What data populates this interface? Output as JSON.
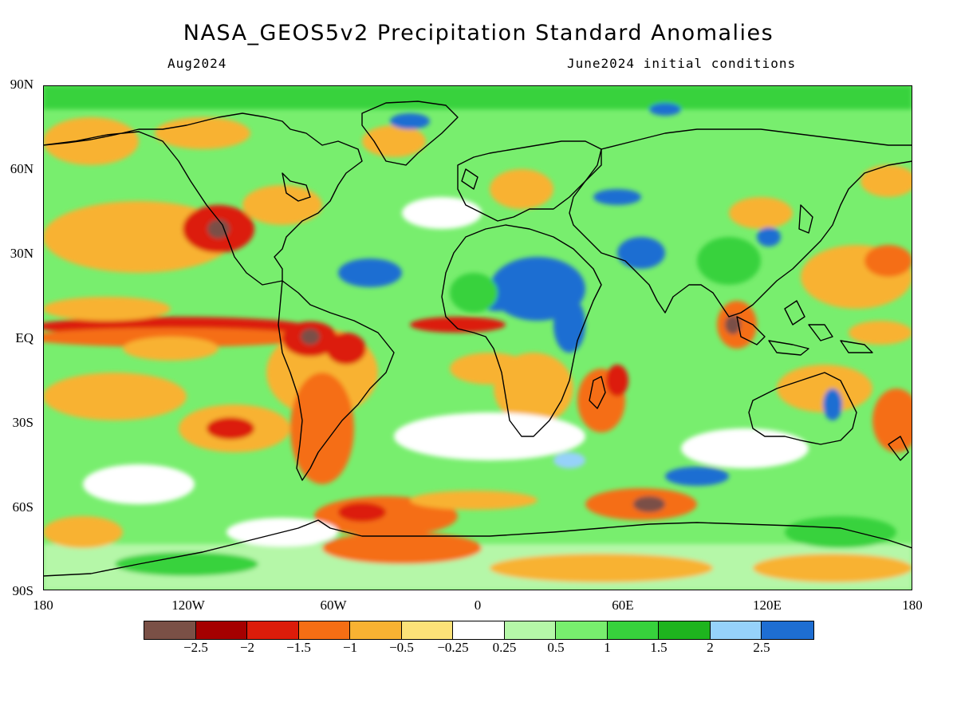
{
  "title": "NASA_GEOS5v2 Precipitation Standard Anomalies",
  "subtitle_left": "Aug2024",
  "subtitle_right": "June2024 initial conditions",
  "lat_labels": [
    "90N",
    "60N",
    "30N",
    "EQ",
    "30S",
    "60S",
    "90S"
  ],
  "lon_labels": [
    "180",
    "120W",
    "60W",
    "0",
    "60E",
    "120E",
    "180"
  ],
  "colorbar": {
    "colors": [
      "#7a5046",
      "#a50000",
      "#dc1c0a",
      "#f56e14",
      "#f8b232",
      "#fce278",
      "#ffffff",
      "#b5f7a8",
      "#78ee6e",
      "#37d23c",
      "#1eb41e",
      "#96d2fa",
      "#1e6ed2"
    ],
    "labels": [
      "−2.5",
      "−2",
      "−1.5",
      "−1",
      "−0.5",
      "−0.25",
      "0.25",
      "0.5",
      "1",
      "1.5",
      "2",
      "2.5"
    ]
  },
  "map_colors": {
    "base_green": "#78ee6e",
    "dark_green": "#37d23c",
    "light_green": "#b5f7a8",
    "blue": "#1e6ed2",
    "light_blue": "#96d2fa",
    "orange": "#f8b232",
    "dark_orange": "#f56e14",
    "red": "#dc1c0a",
    "brown": "#7a5046",
    "yellow": "#fce278"
  }
}
